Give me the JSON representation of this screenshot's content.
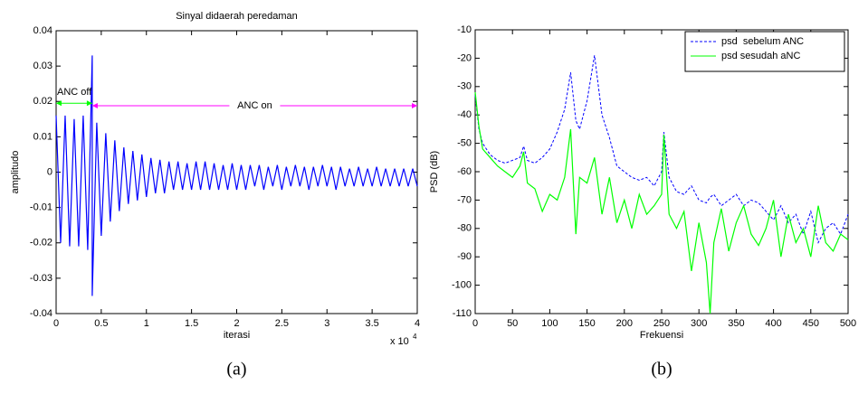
{
  "chart_data": [
    {
      "type": "line",
      "title": "Sinyal didaerah peredaman",
      "xlabel": "iterasi",
      "ylabel": "amplitudo",
      "x_multiplier": "x 10",
      "x_multiplier_exp": "4",
      "caption": "(a)",
      "xlim": [
        0,
        4
      ],
      "xticks": [
        0,
        0.5,
        1,
        1.5,
        2,
        2.5,
        3,
        3.5,
        4
      ],
      "ylim": [
        -0.04,
        0.04
      ],
      "yticks": [
        -0.04,
        -0.03,
        -0.02,
        -0.01,
        0,
        0.01,
        0.02,
        0.03,
        0.04
      ],
      "x": [
        0,
        0.05,
        0.1,
        0.15,
        0.2,
        0.25,
        0.3,
        0.35,
        0.4,
        0.4,
        0.45,
        0.5,
        0.55,
        0.6,
        0.65,
        0.7,
        0.75,
        0.8,
        0.85,
        0.9,
        0.95,
        1,
        1.05,
        1.1,
        1.15,
        1.2,
        1.25,
        1.3,
        1.35,
        1.4,
        1.45,
        1.5,
        1.55,
        1.6,
        1.65,
        1.7,
        1.75,
        1.8,
        1.85,
        1.9,
        1.95,
        2,
        2.05,
        2.1,
        2.15,
        2.2,
        2.25,
        2.3,
        2.35,
        2.4,
        2.45,
        2.5,
        2.55,
        2.6,
        2.65,
        2.7,
        2.75,
        2.8,
        2.85,
        2.9,
        2.95,
        3,
        3.05,
        3.1,
        3.15,
        3.2,
        3.25,
        3.3,
        3.35,
        3.4,
        3.45,
        3.5,
        3.55,
        3.6,
        3.65,
        3.7,
        3.75,
        3.8,
        3.85,
        3.9,
        3.95,
        4
      ],
      "series": [
        {
          "color": "#0000ff",
          "style": "solid",
          "values": [
            0.016,
            -0.02,
            0.016,
            -0.021,
            0.015,
            -0.021,
            0.016,
            -0.022,
            0.033,
            -0.035,
            0.014,
            -0.018,
            0.011,
            -0.014,
            0.009,
            -0.011,
            0.007,
            -0.009,
            0.006,
            -0.008,
            0.005,
            -0.007,
            0.004,
            -0.006,
            0.0035,
            -0.006,
            0.003,
            -0.005,
            0.003,
            -0.005,
            0.0025,
            -0.005,
            0.003,
            -0.005,
            0.003,
            -0.005,
            0.0025,
            -0.005,
            0.002,
            -0.005,
            0.0025,
            -0.005,
            0.002,
            -0.005,
            0.002,
            -0.004,
            0.002,
            -0.005,
            0.0015,
            -0.004,
            0.002,
            -0.005,
            0.0015,
            -0.004,
            0.002,
            -0.004,
            0.0015,
            -0.005,
            0.0015,
            -0.004,
            0.002,
            -0.004,
            0.0015,
            -0.005,
            0.0015,
            -0.004,
            0.001,
            -0.004,
            0.0015,
            -0.004,
            0.001,
            -0.004,
            0.0015,
            -0.004,
            0.001,
            -0.004,
            0.001,
            -0.004,
            0.001,
            -0.004,
            0.001,
            -0.004
          ]
        }
      ],
      "annotations": [
        {
          "text": "ANC off",
          "color": "#00ff00",
          "x": [
            0,
            0.4
          ],
          "y": 0.0195
        },
        {
          "text": "ANC on",
          "color": "#ff00ff",
          "x": [
            0.4,
            4
          ],
          "y": 0.0188
        }
      ]
    },
    {
      "type": "line",
      "xlabel": "Frekuensi",
      "ylabel": "PSD (dB)",
      "caption": "(b)",
      "legend": "upper right",
      "xlim": [
        0,
        500
      ],
      "xticks": [
        0,
        50,
        100,
        150,
        200,
        250,
        300,
        350,
        400,
        450,
        500
      ],
      "ylim": [
        -110,
        -10
      ],
      "yticks": [
        -110,
        -100,
        -90,
        -80,
        -70,
        -60,
        -50,
        -40,
        -30,
        -20,
        -10
      ],
      "x": [
        0,
        5,
        10,
        20,
        30,
        40,
        50,
        60,
        65,
        70,
        80,
        90,
        100,
        110,
        120,
        128,
        135,
        140,
        150,
        160,
        170,
        180,
        190,
        200,
        210,
        220,
        230,
        240,
        250,
        253,
        260,
        270,
        280,
        290,
        300,
        310,
        315,
        320,
        330,
        340,
        350,
        360,
        370,
        380,
        390,
        400,
        410,
        420,
        430,
        440,
        450,
        460,
        470,
        480,
        490,
        500
      ],
      "series": [
        {
          "name": "psd  sebelum ANC",
          "color": "#0000ff",
          "style": "dashed",
          "values": [
            -33,
            -45,
            -50,
            -54,
            -56,
            -57,
            -56,
            -55,
            -51,
            -56,
            -57,
            -55,
            -52,
            -46,
            -38,
            -25,
            -42,
            -45,
            -35,
            -19,
            -40,
            -48,
            -58,
            -60,
            -62,
            -63,
            -62,
            -65,
            -60,
            -46,
            -62,
            -67,
            -68,
            -65,
            -70,
            -71,
            -69,
            -68,
            -72,
            -70,
            -68,
            -72,
            -70,
            -71,
            -74,
            -77,
            -72,
            -78,
            -75,
            -82,
            -74,
            -85,
            -80,
            -78,
            -82,
            -75
          ]
        },
        {
          "name": "psd sesudah aNC",
          "color": "#00ff00",
          "style": "solid",
          "values": [
            -32,
            -44,
            -52,
            -55,
            -58,
            -60,
            -62,
            -58,
            -53,
            -64,
            -66,
            -74,
            -68,
            -70,
            -62,
            -45,
            -82,
            -62,
            -64,
            -55,
            -75,
            -62,
            -78,
            -70,
            -80,
            -68,
            -75,
            -72,
            -68,
            -47,
            -75,
            -80,
            -74,
            -95,
            -78,
            -92,
            -110,
            -85,
            -73,
            -88,
            -78,
            -72,
            -82,
            -86,
            -80,
            -70,
            -90,
            -75,
            -85,
            -80,
            -90,
            -72,
            -85,
            -88,
            -82,
            -84
          ]
        }
      ]
    }
  ]
}
